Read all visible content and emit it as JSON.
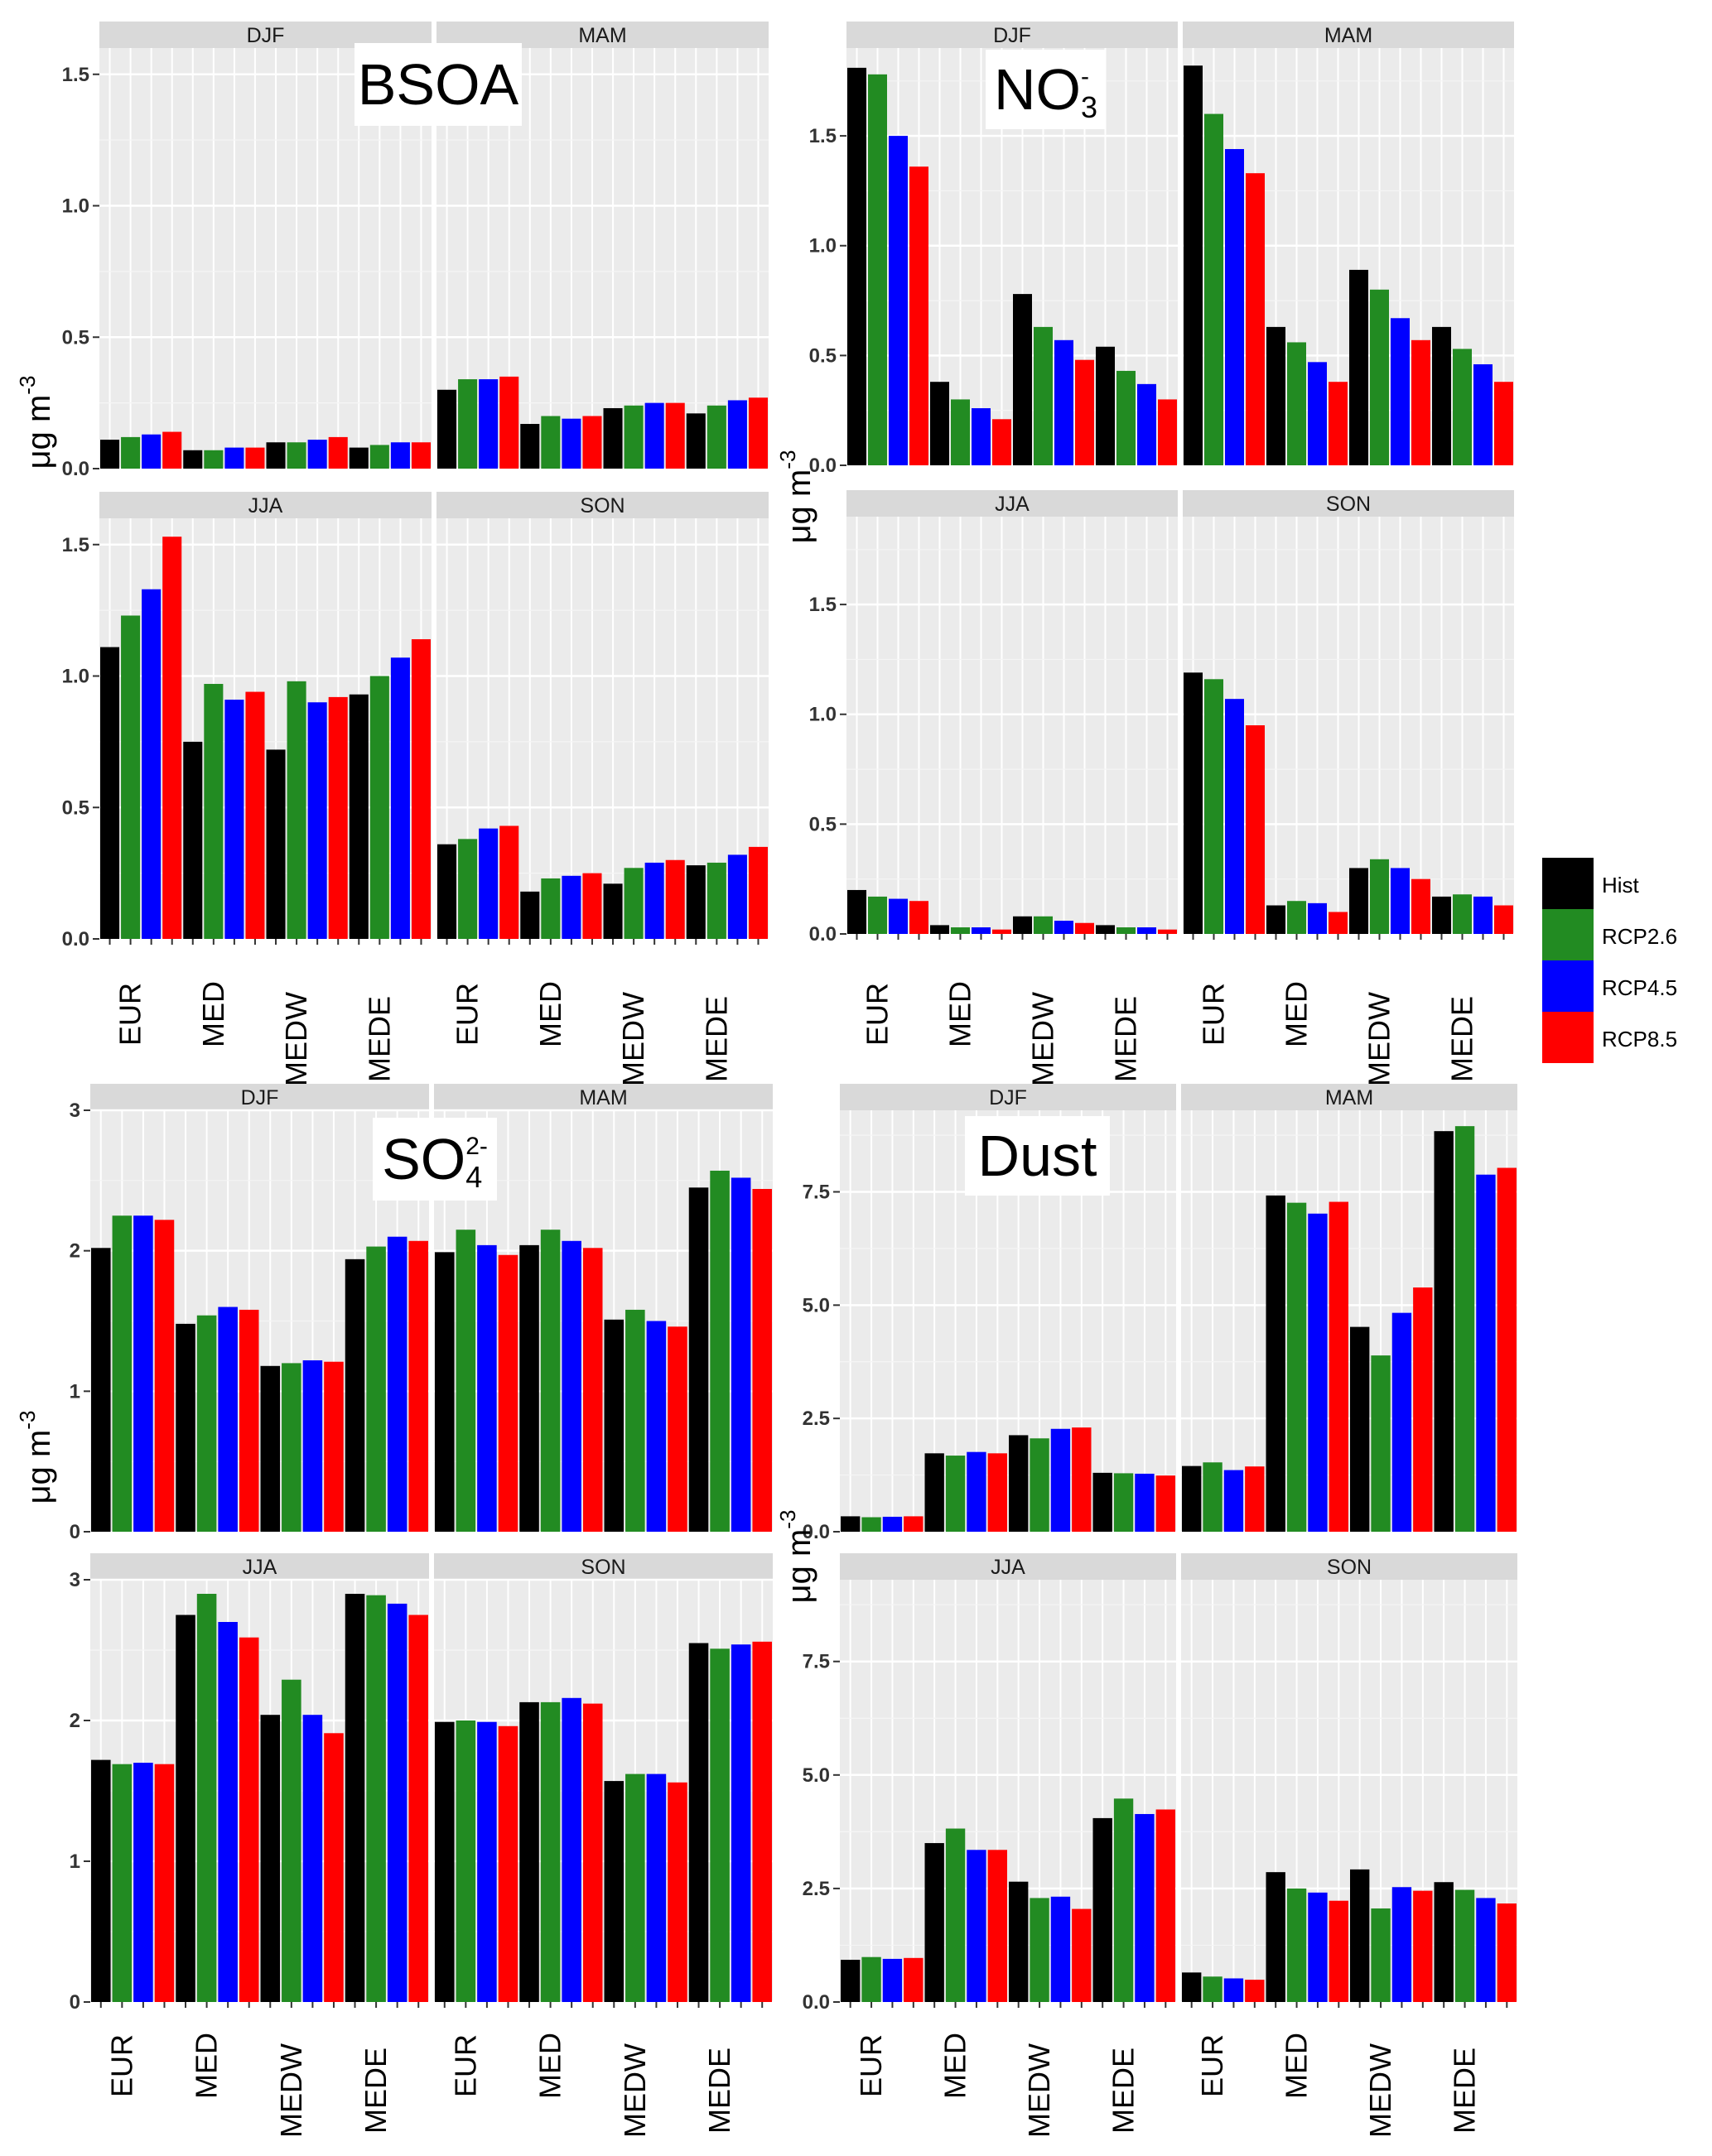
{
  "chart_data": {
    "type": "bar",
    "legend": {
      "position": "right",
      "entries": [
        {
          "name": "Hist",
          "color": "#000000"
        },
        {
          "name": "RCP2.6",
          "color": "#228B22"
        },
        {
          "name": "RCP4.5",
          "color": "#0000FF"
        },
        {
          "name": "RCP8.5",
          "color": "#FF0000"
        }
      ]
    },
    "panels": [
      {
        "id": "bsoa",
        "title": "BSOA",
        "title_sub": "",
        "title_sup": "",
        "ylabel": "μg m",
        "ylabel_sup": "-3",
        "ylim": [
          0,
          1.6
        ],
        "yticks": [
          "0.0",
          "0.5",
          "1.0",
          "1.5"
        ],
        "yvalues": [
          0,
          0.5,
          1.0,
          1.5
        ],
        "categories": [
          "EUR",
          "MED",
          "MEDW",
          "MEDE"
        ],
        "facets": [
          {
            "label": "DJF",
            "values": [
              [
                0.11,
                0.12,
                0.13,
                0.14
              ],
              [
                0.07,
                0.07,
                0.08,
                0.08
              ],
              [
                0.1,
                0.1,
                0.11,
                0.12
              ],
              [
                0.08,
                0.09,
                0.1,
                0.1
              ]
            ]
          },
          {
            "label": "MAM",
            "values": [
              [
                0.3,
                0.34,
                0.34,
                0.35
              ],
              [
                0.17,
                0.2,
                0.19,
                0.2
              ],
              [
                0.23,
                0.24,
                0.25,
                0.25
              ],
              [
                0.21,
                0.24,
                0.26,
                0.27
              ]
            ]
          },
          {
            "label": "JJA",
            "values": [
              [
                1.11,
                1.23,
                1.33,
                1.53
              ],
              [
                0.75,
                0.97,
                0.91,
                0.94
              ],
              [
                0.72,
                0.98,
                0.9,
                0.92
              ],
              [
                0.93,
                1.0,
                1.07,
                1.14
              ]
            ]
          },
          {
            "label": "SON",
            "values": [
              [
                0.36,
                0.38,
                0.42,
                0.43
              ],
              [
                0.18,
                0.23,
                0.24,
                0.25
              ],
              [
                0.21,
                0.27,
                0.29,
                0.3
              ],
              [
                0.28,
                0.29,
                0.32,
                0.35
              ]
            ]
          }
        ]
      },
      {
        "id": "no3",
        "title": "NO",
        "title_sub": "3",
        "title_sup": "-",
        "ylabel": "μg m",
        "ylabel_sup": "-3",
        "ylim": [
          0,
          1.9
        ],
        "yticks": [
          "0.0",
          "0.5",
          "1.0",
          "1.5"
        ],
        "yvalues": [
          0,
          0.5,
          1.0,
          1.5
        ],
        "categories": [
          "EUR",
          "MED",
          "MEDW",
          "MEDE"
        ],
        "facets": [
          {
            "label": "DJF",
            "values": [
              [
                1.81,
                1.78,
                1.5,
                1.36
              ],
              [
                0.38,
                0.3,
                0.26,
                0.21
              ],
              [
                0.78,
                0.63,
                0.57,
                0.48
              ],
              [
                0.54,
                0.43,
                0.37,
                0.3
              ]
            ]
          },
          {
            "label": "MAM",
            "values": [
              [
                1.82,
                1.6,
                1.44,
                1.33
              ],
              [
                0.63,
                0.56,
                0.47,
                0.38
              ],
              [
                0.89,
                0.8,
                0.67,
                0.57
              ],
              [
                0.63,
                0.53,
                0.46,
                0.38
              ]
            ]
          },
          {
            "label": "JJA",
            "values": [
              [
                0.2,
                0.17,
                0.16,
                0.15
              ],
              [
                0.04,
                0.03,
                0.03,
                0.02
              ],
              [
                0.08,
                0.08,
                0.06,
                0.05
              ],
              [
                0.04,
                0.03,
                0.03,
                0.02
              ]
            ]
          },
          {
            "label": "SON",
            "values": [
              [
                1.19,
                1.16,
                1.07,
                0.95
              ],
              [
                0.13,
                0.15,
                0.14,
                0.1
              ],
              [
                0.3,
                0.34,
                0.3,
                0.25
              ],
              [
                0.17,
                0.18,
                0.17,
                0.13
              ]
            ]
          }
        ]
      },
      {
        "id": "so4",
        "title": "SO",
        "title_sub": "4",
        "title_sup": "2-",
        "ylabel": "μg m",
        "ylabel_sup": "-3",
        "ylim": [
          0,
          3.0
        ],
        "yticks": [
          "0",
          "1",
          "2",
          "3"
        ],
        "yvalues": [
          0,
          1,
          2,
          3
        ],
        "categories": [
          "EUR",
          "MED",
          "MEDW",
          "MEDE"
        ],
        "facets": [
          {
            "label": "DJF",
            "values": [
              [
                2.02,
                2.25,
                2.25,
                2.22
              ],
              [
                1.48,
                1.54,
                1.6,
                1.58
              ],
              [
                1.18,
                1.2,
                1.22,
                1.21
              ],
              [
                1.94,
                2.03,
                2.1,
                2.07
              ]
            ]
          },
          {
            "label": "MAM",
            "values": [
              [
                1.99,
                2.15,
                2.04,
                1.97
              ],
              [
                2.04,
                2.15,
                2.07,
                2.02
              ],
              [
                1.51,
                1.58,
                1.5,
                1.46
              ],
              [
                2.45,
                2.57,
                2.52,
                2.44
              ]
            ]
          },
          {
            "label": "JJA",
            "values": [
              [
                1.72,
                1.69,
                1.7,
                1.69
              ],
              [
                2.75,
                2.9,
                2.7,
                2.59
              ],
              [
                2.04,
                2.29,
                2.04,
                1.91
              ],
              [
                2.9,
                2.89,
                2.83,
                2.75
              ]
            ]
          },
          {
            "label": "SON",
            "values": [
              [
                1.99,
                2.0,
                1.99,
                1.96
              ],
              [
                2.13,
                2.13,
                2.16,
                2.12
              ],
              [
                1.57,
                1.62,
                1.62,
                1.56
              ],
              [
                2.55,
                2.51,
                2.54,
                2.56
              ]
            ]
          }
        ]
      },
      {
        "id": "dust",
        "title": "Dust",
        "title_sub": "",
        "title_sup": "",
        "ylabel": "μg m",
        "ylabel_sup": "-3",
        "ylim": [
          0,
          9.3
        ],
        "yticks": [
          "0.0",
          "2.5",
          "5.0",
          "7.5"
        ],
        "yvalues": [
          0,
          2.5,
          5.0,
          7.5
        ],
        "categories": [
          "EUR",
          "MED",
          "MEDW",
          "MEDE"
        ],
        "facets": [
          {
            "label": "DJF",
            "values": [
              [
                0.34,
                0.32,
                0.33,
                0.34
              ],
              [
                1.73,
                1.68,
                1.76,
                1.73
              ],
              [
                2.13,
                2.06,
                2.27,
                2.3
              ],
              [
                1.3,
                1.29,
                1.28,
                1.24
              ]
            ]
          },
          {
            "label": "MAM",
            "values": [
              [
                1.45,
                1.53,
                1.36,
                1.44
              ],
              [
                7.42,
                7.26,
                7.02,
                7.28
              ],
              [
                4.52,
                3.89,
                4.83,
                5.39
              ],
              [
                8.84,
                8.95,
                7.88,
                8.03
              ]
            ]
          },
          {
            "label": "JJA",
            "values": [
              [
                0.93,
                0.99,
                0.95,
                0.97
              ],
              [
                3.5,
                3.82,
                3.35,
                3.35
              ],
              [
                2.65,
                2.29,
                2.32,
                2.05
              ],
              [
                4.05,
                4.48,
                4.14,
                4.24
              ]
            ]
          },
          {
            "label": "SON",
            "values": [
              [
                0.65,
                0.56,
                0.52,
                0.49
              ],
              [
                2.86,
                2.5,
                2.41,
                2.23
              ],
              [
                2.92,
                2.06,
                2.53,
                2.45
              ],
              [
                2.64,
                2.47,
                2.29,
                2.17
              ]
            ]
          }
        ]
      }
    ]
  }
}
